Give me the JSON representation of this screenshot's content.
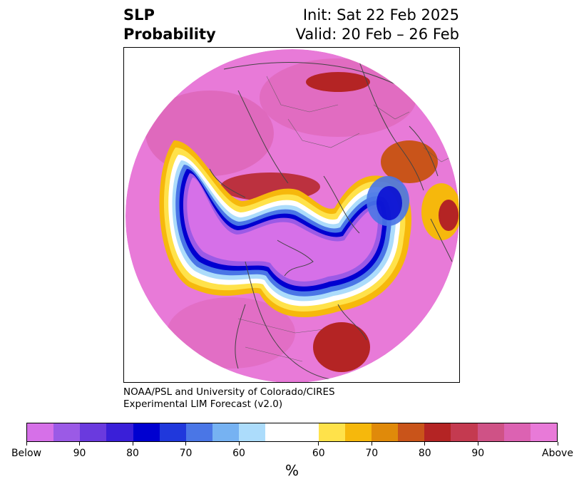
{
  "title": {
    "left_line1": "SLP",
    "left_line2": "Probability",
    "right_line1": "Init: Sat 22 Feb 2025",
    "right_line2": "Valid: 20 Feb – 26 Feb"
  },
  "credit": {
    "line1": "NOAA/PSL and University of Colorado/CIRES",
    "line2": "Experimental LIM Forecast (v2.0)"
  },
  "colorbar": {
    "colors": [
      "#d670e8",
      "#9b5ae6",
      "#6a3ade",
      "#3a1fd8",
      "#0000d0",
      "#2038dc",
      "#4a76e6",
      "#76b2f2",
      "#acdcfb",
      "#ffffff",
      "#ffe24a",
      "#f6b80c",
      "#e08a0a",
      "#c9541a",
      "#b42424",
      "#c43a50",
      "#cf5286",
      "#dc62b2",
      "#e87ad8"
    ],
    "tick_labels": [
      "Below",
      "90",
      "80",
      "70",
      "60",
      "60",
      "70",
      "80",
      "90",
      "Above"
    ],
    "unit_label": "%"
  },
  "map": {
    "background_color": "#e87ad8",
    "polar_projection": "north-polar-stereographic"
  }
}
